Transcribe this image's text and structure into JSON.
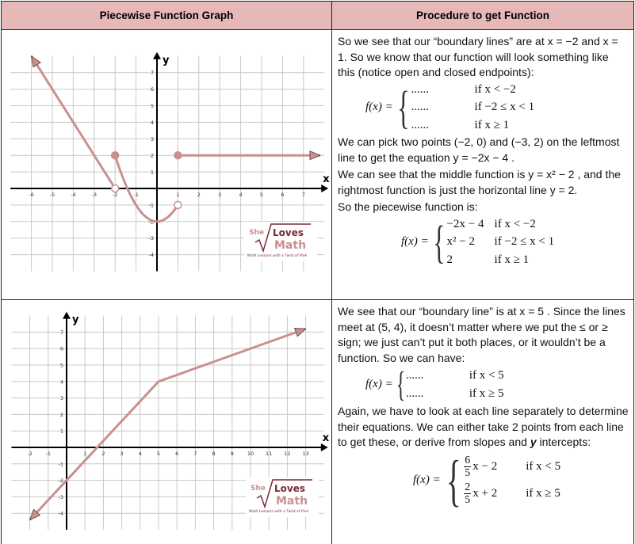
{
  "headers": {
    "graph": "Piecewise Function Graph",
    "procedure": "Procedure to get Function"
  },
  "logo": {
    "line1": "She",
    "line2": "Loves",
    "line3": "Math",
    "tagline": "Math Lessons with a Twist of Pink"
  },
  "colors": {
    "header_bg": "#e6b8b7",
    "curve": "#c9908f",
    "grid": "#c8c8c8"
  },
  "row1": {
    "intro": "So we see that our “boundary lines” are at x = −2 and x = 1.  So we know that our function will look something like this (notice open and closed endpoints):",
    "template": {
      "lhs": "f(x) =",
      "rows": [
        {
          "expr": "......",
          "cond": "if  x < −2"
        },
        {
          "expr": "......",
          "cond": "if  −2 ≤ x < 1"
        },
        {
          "expr": "......",
          "cond": "if  x ≥ 1"
        }
      ]
    },
    "p2": "We can pick two points (−2, 0) and (−3, 2) on the leftmost line to get the equation y = −2x − 4 .",
    "p3": "We can see that the middle function is y = x² − 2 , and the rightmost function is just the horizontal line  y = 2.",
    "p4": "So the piecewise function is:",
    "final": {
      "lhs": "f(x) =",
      "rows": [
        {
          "expr": "−2x − 4",
          "cond": "if  x < −2"
        },
        {
          "expr": "x² − 2",
          "cond": "if  −2 ≤ x < 1"
        },
        {
          "expr": "2",
          "cond": "if  x ≥ 1"
        }
      ]
    }
  },
  "row2": {
    "intro": "We see that our “boundary line” is at x = 5 .  Since the lines meet at (5, 4), it doesn’t matter where we put the ≤ or ≥ sign; we just can’t put it both places, or it wouldn’t be a function.  So we can have:",
    "template": {
      "lhs": "f(x) =",
      "rows": [
        {
          "expr": "......",
          "cond": "if  x < 5"
        },
        {
          "expr": "......",
          "cond": "if  x ≥ 5"
        }
      ]
    },
    "p2a": "Again, we have to look at each line separately to determine their equations.  We can either take 2 points from each line to get these, or derive from slopes and ",
    "p2b": "y",
    "p2c": " intercepts:",
    "final": {
      "lhs": "f(x) =",
      "rows": [
        {
          "num": "6",
          "den": "5",
          "rest": "x − 2",
          "cond": "if  x < 5"
        },
        {
          "num": "2",
          "den": "5",
          "rest": "x + 2",
          "cond": "if  x ≥ 5"
        }
      ]
    }
  },
  "chart_data": [
    {
      "type": "line",
      "xlabel": "x",
      "ylabel": "y",
      "xlim": [
        -7,
        8
      ],
      "ylim": [
        -5,
        8
      ],
      "grid": true,
      "xticks": [
        -6,
        -5,
        -4,
        -3,
        -2,
        -1,
        1,
        2,
        3,
        4,
        5,
        6,
        7
      ],
      "yticks": [
        -4,
        -3,
        -2,
        -1,
        1,
        2,
        3,
        4,
        5,
        6,
        7
      ],
      "segments": [
        {
          "kind": "line",
          "points": [
            [
              -6,
              8
            ],
            [
              -2,
              0
            ]
          ],
          "arrow_start": true
        },
        {
          "kind": "function",
          "expr": "x^2-2",
          "domain": [
            -2,
            1
          ]
        },
        {
          "kind": "line",
          "points": [
            [
              1,
              2
            ],
            [
              7.8,
              2
            ]
          ],
          "arrow_end": true
        }
      ],
      "endpoints": [
        {
          "x": -2,
          "y": 0,
          "closed": false
        },
        {
          "x": -2,
          "y": 2,
          "closed": true
        },
        {
          "x": 1,
          "y": -1,
          "closed": false
        },
        {
          "x": 1,
          "y": 2,
          "closed": true
        }
      ]
    },
    {
      "type": "line",
      "xlabel": "x",
      "ylabel": "y",
      "xlim": [
        -3,
        14
      ],
      "ylim": [
        -5,
        8
      ],
      "grid": true,
      "xticks": [
        -2,
        -1,
        1,
        2,
        3,
        4,
        5,
        6,
        7,
        8,
        9,
        10,
        11,
        12,
        13
      ],
      "yticks": [
        -4,
        -3,
        -2,
        -1,
        1,
        2,
        3,
        4,
        5,
        6,
        7
      ],
      "segments": [
        {
          "kind": "line",
          "points": [
            [
              -2,
              -4.4
            ],
            [
              5,
              4
            ]
          ],
          "arrow_start": true
        },
        {
          "kind": "line",
          "points": [
            [
              5,
              4
            ],
            [
              13,
              7.2
            ]
          ],
          "arrow_end": true
        }
      ],
      "endpoints": []
    }
  ]
}
